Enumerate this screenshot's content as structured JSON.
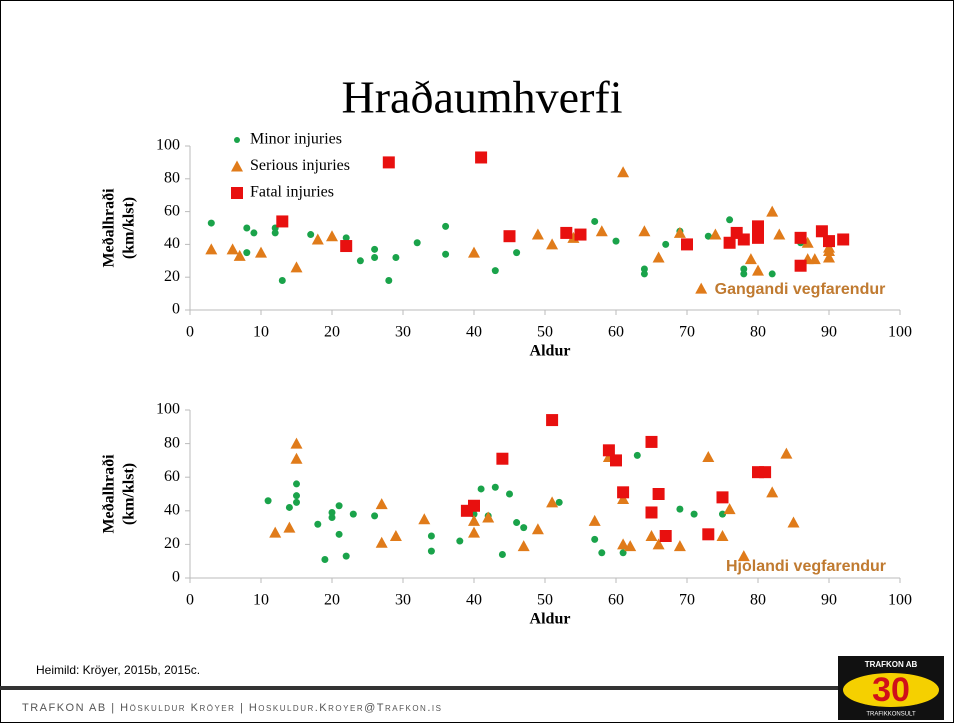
{
  "title": "Hraðaumhverfi",
  "source": "Heimild: Kröyer, 2015b, 2015c.",
  "footer": "TRAFKON AB | Höskuldur Kröyer | Hoskuldur.Kroyer@Trafkon.is",
  "logo": {
    "top": "TRAFKON AB",
    "number": "30",
    "bottom": "TRAFIKKONSULT"
  },
  "chart_data": [
    {
      "type": "scatter",
      "xlabel": "Aldur",
      "ylabel": [
        "Meðalhraði",
        "(km/klst)"
      ],
      "annotation": "Gangandi vegfarendur",
      "xlim": [
        0,
        100
      ],
      "xticks": [
        0,
        10,
        20,
        30,
        40,
        50,
        60,
        70,
        80,
        90,
        100
      ],
      "ylim": [
        0,
        100
      ],
      "yticks": [
        0,
        20,
        40,
        60,
        80,
        100
      ],
      "legend": true,
      "legend_position": "upper left",
      "series": [
        {
          "name": "Minor injuries",
          "color": "#1aa34a",
          "marker": "circle",
          "x": [
            3,
            8,
            8,
            9,
            12,
            12,
            13,
            17,
            22,
            24,
            26,
            26,
            28,
            29,
            32,
            36,
            36,
            43,
            46,
            57,
            60,
            64,
            64,
            67,
            69,
            73,
            76,
            78,
            78,
            82,
            86
          ],
          "values": [
            53,
            50,
            35,
            47,
            50,
            47,
            18,
            46,
            44,
            30,
            37,
            32,
            18,
            32,
            41,
            51,
            34,
            24,
            35,
            54,
            42,
            25,
            22,
            40,
            48,
            45,
            55,
            25,
            22,
            22,
            41
          ]
        },
        {
          "name": "Serious injuries",
          "color": "#e07b1a",
          "marker": "triangle",
          "x": [
            3,
            6,
            7,
            10,
            15,
            18,
            20,
            40,
            49,
            51,
            54,
            58,
            61,
            64,
            66,
            69,
            72,
            74,
            79,
            80,
            82,
            83,
            86,
            87,
            87,
            88,
            90,
            90,
            90
          ],
          "values": [
            37,
            37,
            33,
            35,
            26,
            43,
            45,
            35,
            46,
            40,
            44,
            48,
            84,
            48,
            32,
            47,
            13,
            46,
            31,
            24,
            60,
            46,
            44,
            41,
            31,
            31,
            36,
            32,
            38
          ]
        },
        {
          "name": "Fatal injuries",
          "color": "#e8100f",
          "marker": "square",
          "x": [
            13,
            22,
            28,
            41,
            45,
            53,
            55,
            70,
            76,
            77,
            78,
            80,
            80,
            86,
            86,
            89,
            90,
            92
          ],
          "values": [
            54,
            39,
            90,
            93,
            45,
            47,
            46,
            40,
            41,
            47,
            43,
            51,
            44,
            44,
            27,
            48,
            42,
            43
          ]
        }
      ]
    },
    {
      "type": "scatter",
      "xlabel": "Aldur",
      "ylabel": [
        "Meðalhraði",
        "(km/klst)"
      ],
      "annotation": "Hjolandi vegfarendur",
      "xlim": [
        0,
        100
      ],
      "xticks": [
        0,
        10,
        20,
        30,
        40,
        50,
        60,
        70,
        80,
        90,
        100
      ],
      "ylim": [
        0,
        100
      ],
      "yticks": [
        0,
        20,
        40,
        60,
        80,
        100
      ],
      "legend": false,
      "series": [
        {
          "color": "#1aa34a",
          "marker": "circle",
          "x": [
            11,
            14,
            15,
            15,
            15,
            18,
            19,
            20,
            20,
            21,
            21,
            22,
            23,
            26,
            34,
            34,
            38,
            40,
            41,
            42,
            43,
            44,
            45,
            46,
            47,
            52,
            57,
            58,
            61,
            63,
            69,
            71,
            75
          ],
          "values": [
            46,
            42,
            56,
            49,
            45,
            32,
            11,
            39,
            36,
            43,
            26,
            13,
            38,
            37,
            16,
            25,
            22,
            38,
            53,
            37,
            54,
            14,
            50,
            33,
            30,
            45,
            23,
            15,
            15,
            73,
            41,
            38,
            38
          ]
        },
        {
          "color": "#e07b1a",
          "marker": "triangle",
          "x": [
            12,
            14,
            15,
            15,
            27,
            27,
            29,
            33,
            40,
            40,
            42,
            47,
            49,
            51,
            57,
            59,
            61,
            61,
            62,
            65,
            66,
            69,
            73,
            75,
            76,
            78,
            82,
            84,
            85
          ],
          "values": [
            27,
            30,
            80,
            71,
            44,
            21,
            25,
            35,
            27,
            34,
            36,
            19,
            29,
            45,
            34,
            72,
            47,
            20,
            19,
            25,
            20,
            19,
            72,
            25,
            41,
            13,
            51,
            74,
            33
          ]
        },
        {
          "color": "#e8100f",
          "marker": "square",
          "x": [
            39,
            40,
            44,
            51,
            59,
            60,
            61,
            65,
            65,
            66,
            67,
            73,
            75,
            80,
            81
          ],
          "values": [
            40,
            43,
            71,
            94,
            76,
            70,
            51,
            81,
            39,
            50,
            25,
            26,
            48,
            63,
            63
          ]
        }
      ]
    }
  ]
}
